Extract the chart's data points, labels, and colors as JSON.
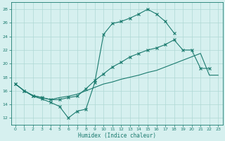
{
  "xlabel": "Humidex (Indice chaleur)",
  "bg_color": "#d6f0ef",
  "grid_color": "#aed8d5",
  "line_color": "#1a7a6e",
  "xlim": [
    -0.5,
    23.5
  ],
  "ylim": [
    11,
    29
  ],
  "xticks": [
    0,
    1,
    2,
    3,
    4,
    5,
    6,
    7,
    8,
    9,
    10,
    11,
    12,
    13,
    14,
    15,
    16,
    17,
    18,
    19,
    20,
    21,
    22,
    23
  ],
  "yticks": [
    12,
    14,
    16,
    18,
    20,
    22,
    24,
    26,
    28
  ],
  "line1_x": [
    0,
    1,
    2,
    3,
    4,
    5,
    6,
    7,
    8,
    9,
    10,
    11,
    12,
    13,
    14,
    15,
    16,
    17,
    18
  ],
  "line1_y": [
    17.0,
    16.0,
    15.2,
    14.8,
    14.3,
    13.7,
    12.0,
    13.0,
    13.3,
    17.2,
    24.3,
    25.9,
    26.2,
    26.7,
    27.3,
    28.0,
    27.3,
    26.2,
    24.5
  ],
  "line2_x": [
    0,
    1,
    2,
    3,
    4,
    5,
    6,
    7,
    8,
    9,
    10,
    11,
    12,
    13,
    14,
    15,
    16,
    17,
    18,
    19,
    20,
    21,
    22
  ],
  "line2_y": [
    17.0,
    16.0,
    15.3,
    15.0,
    14.7,
    14.7,
    15.0,
    15.2,
    16.3,
    17.5,
    18.5,
    19.5,
    20.2,
    21.0,
    21.5,
    22.0,
    22.3,
    22.8,
    23.5,
    22.0,
    22.0,
    19.3,
    19.3
  ],
  "line3_x": [
    0,
    1,
    2,
    3,
    4,
    5,
    6,
    7,
    8,
    9,
    10,
    11,
    12,
    13,
    14,
    15,
    16,
    17,
    18,
    19,
    20,
    21,
    22,
    23
  ],
  "line3_y": [
    17.0,
    16.0,
    15.3,
    15.0,
    14.7,
    15.0,
    15.2,
    15.5,
    16.0,
    16.5,
    17.0,
    17.3,
    17.7,
    18.0,
    18.3,
    18.7,
    19.0,
    19.5,
    20.0,
    20.5,
    21.0,
    21.5,
    18.3,
    18.3
  ]
}
